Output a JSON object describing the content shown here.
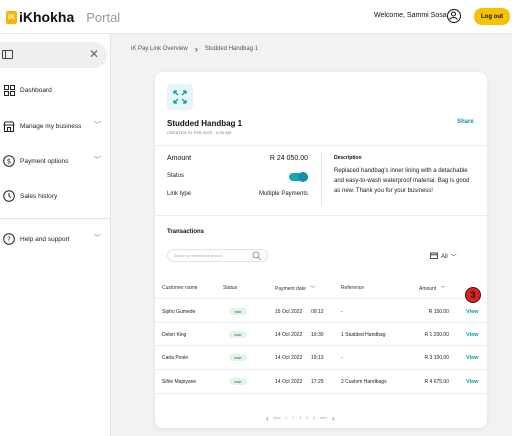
{
  "header": {
    "logo_mark": "iK",
    "logo_text": "iKhokha",
    "portal_label": "Portal",
    "welcome": "Welcome, Sammi Sosa",
    "logout_label": "Log out"
  },
  "sidebar": {
    "items": [
      {
        "label": "Dashboard"
      },
      {
        "label": "Manage my business"
      },
      {
        "label": "Payment options"
      },
      {
        "label": "Sales history"
      },
      {
        "label": "Help and support"
      }
    ]
  },
  "breadcrumb": {
    "parent": "iK Pay Link Overview",
    "current": "Studded Handbag 1"
  },
  "product": {
    "title": "Studded Handbag 1",
    "created": "CREATED 01 FEB 2023 · 9:00 AM",
    "share_label": "Share",
    "amount_label": "Amount",
    "amount_value": "R 24 050.00",
    "status_label": "Status",
    "status_on": true,
    "link_type_label": "Link type",
    "link_type_value": "Multiple Payments",
    "description_label": "Description",
    "description": "Replaced handbag's inner lining with a detachable and easy-to-wash waterproof material. Bag is good as new. Thank you for your business!"
  },
  "transactions": {
    "title": "Transactions",
    "search_placeholder": "Search by reference or amount",
    "filter_label": "All",
    "columns": {
      "customer": "Customer name",
      "status": "Status",
      "date": "Payment date",
      "reference": "Reference",
      "amount": "Amount"
    },
    "rows": [
      {
        "customer": "Sipho Gumede",
        "status": "PAID",
        "date": "15 Oct 2022",
        "time": "09:12",
        "reference": "-",
        "amount": "R 150.00",
        "action": "View"
      },
      {
        "customer": "Delon King",
        "status": "PAID",
        "date": "14 Oct 2022",
        "time": "19:30",
        "reference": "1 Studded Handbag",
        "amount": "R 1 200.00",
        "action": "View"
      },
      {
        "customer": "Carla Poole",
        "status": "PAID",
        "date": "14 Oct 2022",
        "time": "19:13",
        "reference": "-",
        "amount": "R 3 100.00",
        "action": "View"
      },
      {
        "customer": "Sihle Mapiyane",
        "status": "PAID",
        "date": "14 Oct 2022",
        "time": "17:29",
        "reference": "2 Custom Handbags",
        "amount": "R 4 675.00",
        "action": "View"
      }
    ]
  },
  "pager": {
    "prev": "prev",
    "pages": [
      "1",
      "2",
      "3",
      "4",
      "5"
    ],
    "next": "next"
  },
  "annotation": {
    "step": "3"
  },
  "colors": {
    "brand_yellow": "#f7c200",
    "accent_teal": "#0a9aa8",
    "paid_green": "#2f8b48",
    "annotation_red": "#e02020"
  }
}
